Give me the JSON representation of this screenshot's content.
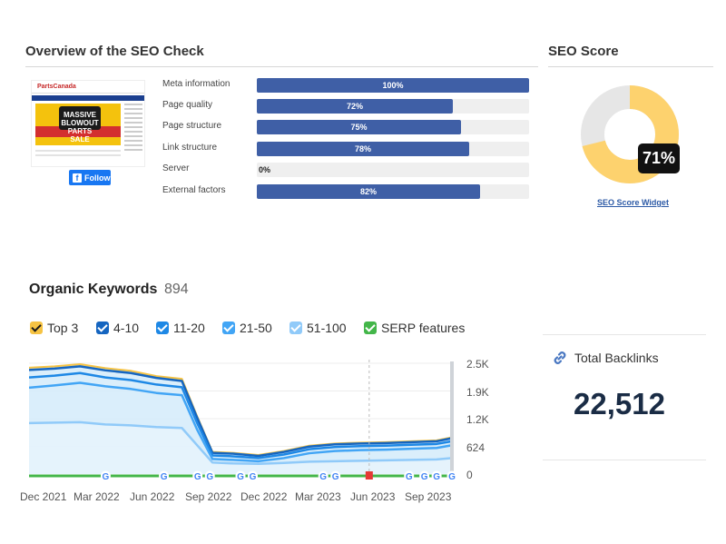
{
  "seo_check": {
    "title": "Overview of the SEO Check",
    "thumbnail": {
      "site_logo": "PartsCanada",
      "banner_text": "MASSIVE BLOWOUT PARTS SALE"
    },
    "follow_button": {
      "label": "Follow",
      "icon": "facebook-icon"
    },
    "metrics": [
      {
        "label": "Meta information",
        "value": 100,
        "value_label": "100%"
      },
      {
        "label": "Page quality",
        "value": 72,
        "value_label": "72%"
      },
      {
        "label": "Page structure",
        "value": 75,
        "value_label": "75%"
      },
      {
        "label": "Link structure",
        "value": 78,
        "value_label": "78%"
      },
      {
        "label": "Server",
        "value": 0,
        "value_label": "0%"
      },
      {
        "label": "External factors",
        "value": 82,
        "value_label": "82%"
      }
    ],
    "bar_color": "#3f5fa6"
  },
  "seo_score": {
    "title": "SEO Score",
    "value": 71,
    "value_label": "71%",
    "link_label": "SEO Score Widget",
    "fill_color": "#fdd26e",
    "rest_color": "#e6e6e6"
  },
  "organic_keywords": {
    "title": "Organic Keywords",
    "count": "894",
    "legend": [
      {
        "label": "Top 3",
        "color": "#f6c343",
        "check": "dark"
      },
      {
        "label": "4-10",
        "color": "#1565c0",
        "check": "light"
      },
      {
        "label": "11-20",
        "color": "#1e88e5",
        "check": "light"
      },
      {
        "label": "21-50",
        "color": "#42a5f5",
        "check": "light"
      },
      {
        "label": "51-100",
        "color": "#90caf9",
        "check": "light"
      },
      {
        "label": "SERP features",
        "color": "#43b649",
        "check": "light"
      }
    ]
  },
  "chart_data": {
    "type": "area",
    "x_tick_labels": [
      "Dec 2021",
      "Mar 2022",
      "Jun 2022",
      "Sep 2022",
      "Dec 2022",
      "Mar 2023",
      "Jun 2023",
      "Sep 2023"
    ],
    "y_tick_labels": [
      "2.5K",
      "1.9K",
      "1.2K",
      "624",
      "0"
    ],
    "ylim": [
      0,
      2500
    ],
    "x": [
      0,
      0.5,
      1,
      1.5,
      2,
      2.5,
      3,
      3.3,
      3.6,
      4,
      4.5,
      5,
      5.5,
      6,
      6.5,
      7,
      7.5,
      8,
      8.3
    ],
    "series": [
      {
        "name": "Top 3",
        "color": "#f6c343",
        "values": [
          2400,
          2430,
          2480,
          2390,
          2330,
          2210,
          2150,
          1300,
          500,
          480,
          430,
          520,
          640,
          690,
          710,
          720,
          740,
          760,
          830
        ]
      },
      {
        "name": "4-10",
        "color": "#1565c0",
        "values": [
          2350,
          2380,
          2430,
          2340,
          2280,
          2170,
          2100,
          1270,
          480,
          460,
          410,
          500,
          620,
          670,
          690,
          700,
          720,
          740,
          810
        ]
      },
      {
        "name": "11-20",
        "color": "#1e88e5",
        "values": [
          2180,
          2220,
          2280,
          2180,
          2120,
          2020,
          1960,
          1150,
          420,
          400,
          360,
          440,
          560,
          610,
          630,
          640,
          660,
          680,
          740
        ]
      },
      {
        "name": "21-50",
        "color": "#42a5f5",
        "values": [
          1950,
          2000,
          2060,
          1980,
          1920,
          1830,
          1780,
          1000,
          340,
          320,
          290,
          360,
          470,
          520,
          540,
          550,
          570,
          590,
          650
        ]
      },
      {
        "name": "51-100",
        "color": "#90caf9",
        "values": [
          1150,
          1160,
          1170,
          1120,
          1100,
          1060,
          1040,
          650,
          260,
          240,
          230,
          250,
          280,
          290,
          300,
          310,
          320,
          330,
          360
        ]
      }
    ],
    "annotations": {
      "google_updates": [
        2.5,
        4.4,
        5.5,
        5.9,
        6.9,
        7.3,
        9.6,
        10.0,
        12.4,
        12.9,
        13.3,
        13.8
      ],
      "flag": 11.1,
      "vertical_marker": 11.1
    }
  },
  "backlinks": {
    "icon": "link-icon",
    "label": "Total Backlinks",
    "value": "22,512"
  }
}
